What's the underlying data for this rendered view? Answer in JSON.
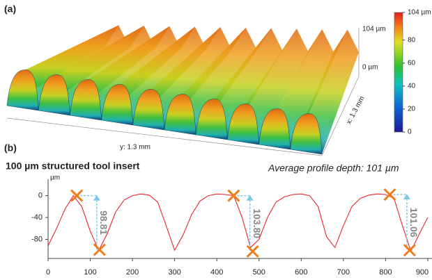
{
  "chart_data": [
    {
      "type": "surface",
      "panel": "(a)",
      "colorbar": {
        "zlim": [
          0,
          104
        ],
        "ticks": [
          0,
          20,
          40,
          60,
          80,
          {
            "value": 104,
            "label": "104 µm"
          }
        ]
      },
      "z_axis_labels": [
        "104 µm",
        "0 µm"
      ],
      "xlabel": "x: 1.3 mm",
      "ylabel": "y: 1.3 mm"
    },
    {
      "type": "line",
      "panel": "(b)",
      "title": "100 µm structured tool insert",
      "annotation": "Average profile depth: 101 µm",
      "ylabel": "µm",
      "xlim": [
        0,
        910
      ],
      "ylim": [
        -115,
        30
      ],
      "xticks": [
        0,
        100,
        200,
        300,
        400,
        500,
        600,
        700,
        800,
        900
      ],
      "yticks": [
        0,
        -40,
        -80
      ],
      "color": "#e8252b",
      "x": [
        0,
        20,
        40,
        60,
        80,
        100,
        120,
        140,
        160,
        180,
        200,
        220,
        240,
        260,
        280,
        300,
        320,
        340,
        360,
        380,
        400,
        420,
        440,
        460,
        480,
        500,
        520,
        540,
        560,
        580,
        600,
        620,
        640,
        660,
        680,
        700,
        720,
        740,
        760,
        780,
        800,
        820,
        840,
        860,
        880,
        900
      ],
      "values": [
        -92,
        -60,
        -25,
        0,
        -20,
        -65,
        -100,
        -70,
        -30,
        -8,
        0,
        3,
        1,
        -12,
        -55,
        -100,
        -72,
        -35,
        -10,
        0,
        3,
        2,
        0,
        -40,
        -95,
        -80,
        -40,
        -12,
        -2,
        2,
        3,
        0,
        -20,
        -75,
        -95,
        -55,
        -20,
        -5,
        1,
        3,
        2,
        -5,
        -55,
        -102,
        -70,
        -40
      ],
      "measurements": {
        "peak_x": [
          68,
          440,
          810
        ],
        "peak_y": [
          0,
          0,
          2
        ],
        "trough_x": [
          122,
          485,
          857
        ],
        "trough_y": [
          -99,
          -102,
          -100
        ],
        "depths": [
          98.81,
          103.8,
          101.06
        ],
        "depth_labels": [
          "98.81",
          "103.80",
          "101.06"
        ]
      }
    }
  ]
}
